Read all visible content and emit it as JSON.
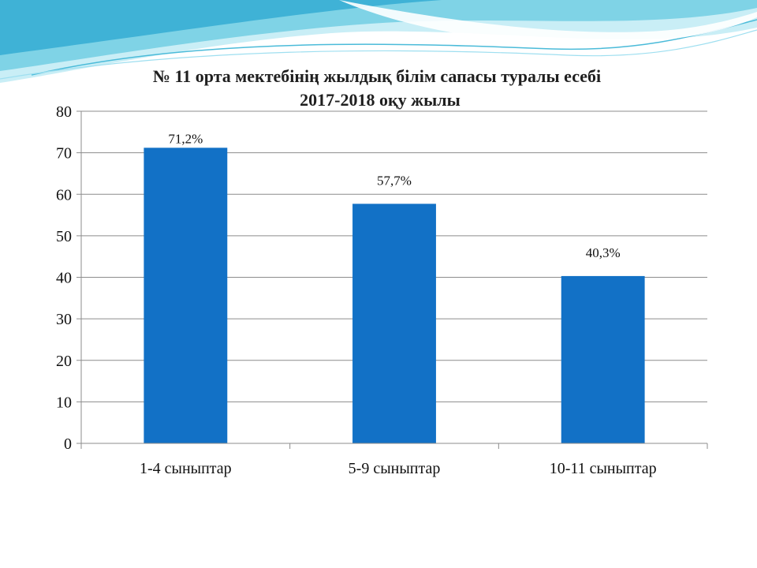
{
  "slide": {
    "background": "#ffffff",
    "wave_colors": [
      "#bfeaf3",
      "#5ec9e0",
      "#1e9fc9"
    ]
  },
  "chart_data": {
    "type": "bar",
    "title_lines": [
      "№ 11 орта мектебінің  жылдық  білім сапасы туралы  есебі",
      "2017-2018 оқу жылы"
    ],
    "categories": [
      "1-4 сыныптар",
      "5-9 сыныптар",
      "10-11 сыныптар"
    ],
    "values": [
      71.2,
      57.7,
      40.3
    ],
    "data_labels": [
      "71,2%",
      "57,7%",
      "40,3%"
    ],
    "ylim": [
      0,
      80
    ],
    "yticks": [
      0,
      10,
      20,
      30,
      40,
      50,
      60,
      70,
      80
    ],
    "bar_color": "#1271c6",
    "grid": true,
    "legend": "none"
  }
}
